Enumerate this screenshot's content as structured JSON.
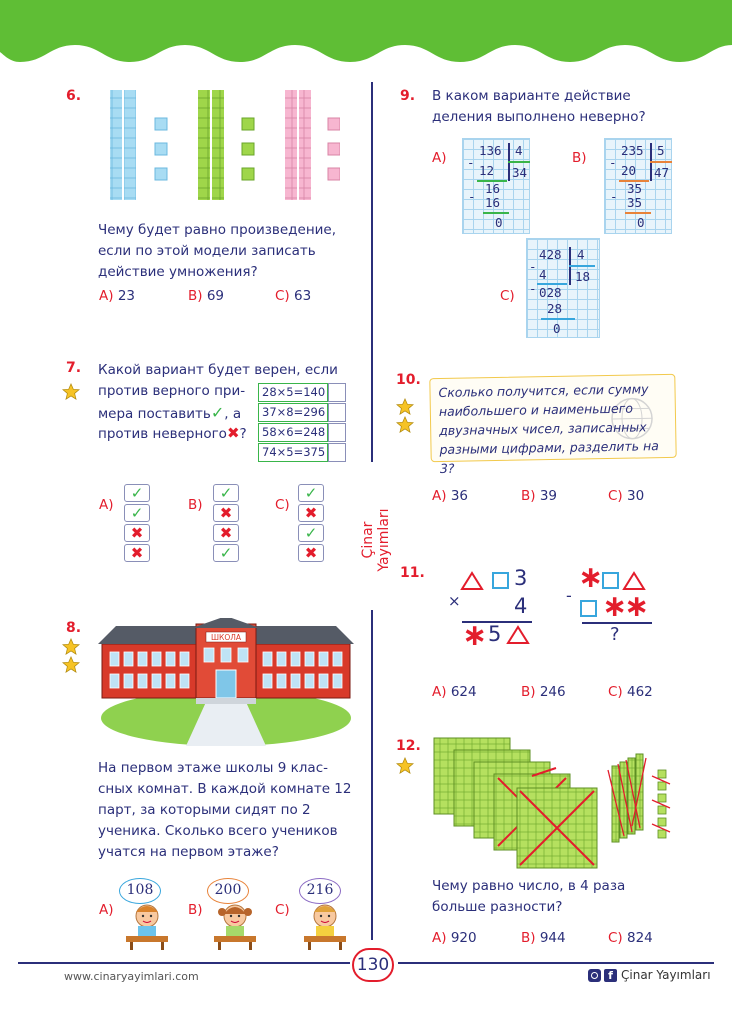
{
  "page_number": "130",
  "website": "www.cinaryayimlari.com",
  "brand_side": "Çinar Yayımları",
  "brand_footer": "Çinar Yayımları",
  "q6": {
    "num": "6.",
    "text": "Чему будет равно произведение, если по этой модели записать действие умножения?",
    "options": [
      {
        "letter": "A)",
        "value": "23"
      },
      {
        "letter": "B)",
        "value": "69"
      },
      {
        "letter": "C)",
        "value": "63"
      }
    ]
  },
  "q7": {
    "num": "7.",
    "text_1": "Какой вариант будет верен, если",
    "text_2": "против верного при-",
    "text_3": "мера поставить",
    "text_3b": ", а",
    "text_4": "против неверного",
    "text_4b": "?",
    "examples": [
      "28×5=140",
      "37×8=296",
      "58×6=248",
      "74×5=375"
    ],
    "options": [
      {
        "letter": "A)",
        "marks": [
          "ok",
          "ok",
          "no",
          "no"
        ]
      },
      {
        "letter": "B)",
        "marks": [
          "ok",
          "no",
          "no",
          "ok"
        ]
      },
      {
        "letter": "C)",
        "marks": [
          "ok",
          "no",
          "ok",
          "no"
        ]
      }
    ]
  },
  "q8": {
    "num": "8.",
    "school_sign": "ШКОЛА",
    "text": "На первом этаже школы 9 клас-сных комнат. В каждой комнате 12 парт, за которыми сидят по 2 ученика. Сколько всего учеников учатся на первом этаже?",
    "options": [
      {
        "letter": "A)",
        "value": "108"
      },
      {
        "letter": "B)",
        "value": "200"
      },
      {
        "letter": "C)",
        "value": "216"
      }
    ]
  },
  "q9": {
    "num": "9.",
    "text": "В каком варианте действие деления выполнено неверно?",
    "options": [
      {
        "letter": "A)",
        "dividend": "136",
        "divisor": "4",
        "step1": "12",
        "quotient": "34",
        "step2": "16",
        "step3": "16",
        "remainder": "0"
      },
      {
        "letter": "B)",
        "dividend": "235",
        "divisor": "5",
        "step1": "20",
        "quotient": "47",
        "step2": "35",
        "step3": "35",
        "remainder": "0"
      },
      {
        "letter": "C)",
        "dividend": "428",
        "divisor": "4",
        "step1": "4",
        "quotient": "18",
        "step2": "028",
        "step3": "28",
        "remainder": "0"
      }
    ]
  },
  "q10": {
    "num": "10.",
    "text": "Сколько получится, если сумму наибольшего и наименьшего двузначных чисел, записанных разными цифрами, разделить на 3?",
    "options": [
      {
        "letter": "A)",
        "value": "36"
      },
      {
        "letter": "B)",
        "value": "39"
      },
      {
        "letter": "C)",
        "value": "30"
      }
    ]
  },
  "q11": {
    "num": "11.",
    "left": {
      "row1_digit": "3",
      "mult": "×",
      "row2": "4",
      "row3_digit": "5"
    },
    "right": {
      "minus": "-",
      "result": "?"
    },
    "options": [
      {
        "letter": "A)",
        "value": "624"
      },
      {
        "letter": "B)",
        "value": "246"
      },
      {
        "letter": "C)",
        "value": "462"
      }
    ]
  },
  "q12": {
    "num": "12.",
    "text": "Чему равно число, в 4 раза больше разности?",
    "options": [
      {
        "letter": "A)",
        "value": "920"
      },
      {
        "letter": "B)",
        "value": "944"
      },
      {
        "letter": "C)",
        "value": "824"
      }
    ]
  },
  "colors": {
    "green": "#5fbe35",
    "red": "#e31d2c",
    "navy": "#2b2f7a",
    "yellow": "#f6c325",
    "blue_unit": "#a8dcf3",
    "green_unit": "#9fd64a",
    "pink_unit": "#f7b6d0"
  }
}
